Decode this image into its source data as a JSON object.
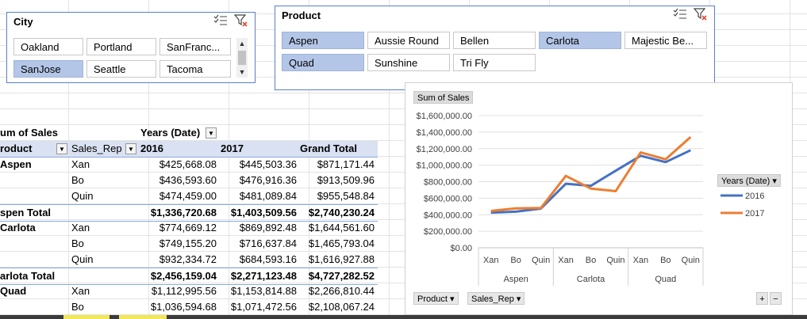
{
  "city_slicer": {
    "title": "City",
    "items": [
      {
        "label": "Oakland",
        "selected": false
      },
      {
        "label": "Portland",
        "selected": false
      },
      {
        "label": "SanFranc...",
        "selected": false
      },
      {
        "label": "SanJose",
        "selected": true
      },
      {
        "label": "Seattle",
        "selected": false
      },
      {
        "label": "Tacoma",
        "selected": false
      }
    ]
  },
  "product_slicer": {
    "title": "Product",
    "items": [
      {
        "label": "Aspen",
        "selected": true
      },
      {
        "label": "Aussie Round",
        "selected": false
      },
      {
        "label": "Bellen",
        "selected": false
      },
      {
        "label": "Carlota",
        "selected": true
      },
      {
        "label": "Majestic Be...",
        "selected": false
      },
      {
        "label": "Quad",
        "selected": true
      },
      {
        "label": "Sunshine",
        "selected": false
      },
      {
        "label": "Tri Fly",
        "selected": false
      }
    ]
  },
  "pivot": {
    "header1": {
      "measure": "um of Sales",
      "column_field": "Years (Date)"
    },
    "header2": {
      "row_field": "roduct",
      "sub_field": "Sales_Rep",
      "col_2016": "2016",
      "col_2017": "2017",
      "grand_total": "Grand Total"
    },
    "rows": [
      {
        "product": "Aspen",
        "rep": "Xan",
        "v2016": "$425,668.08",
        "v2017": "$445,503.36",
        "total": "$871,171.44",
        "type": "first"
      },
      {
        "product": "",
        "rep": "Bo",
        "v2016": "$436,593.60",
        "v2017": "$476,916.36",
        "total": "$913,509.96",
        "type": "detail"
      },
      {
        "product": "",
        "rep": "Quin",
        "v2016": "$474,459.00",
        "v2017": "$481,089.84",
        "total": "$955,548.84",
        "type": "detail"
      },
      {
        "product": "spen Total",
        "rep": "",
        "v2016": "$1,336,720.68",
        "v2017": "$1,403,509.56",
        "total": "$2,740,230.24",
        "type": "total"
      },
      {
        "product": "Carlota",
        "rep": "Xan",
        "v2016": "$774,669.12",
        "v2017": "$869,892.48",
        "total": "$1,644,561.60",
        "type": "first"
      },
      {
        "product": "",
        "rep": "Bo",
        "v2016": "$749,155.20",
        "v2017": "$716,637.84",
        "total": "$1,465,793.04",
        "type": "detail"
      },
      {
        "product": "",
        "rep": "Quin",
        "v2016": "$932,334.72",
        "v2017": "$684,593.16",
        "total": "$1,616,927.88",
        "type": "detail"
      },
      {
        "product": "arlota Total",
        "rep": "",
        "v2016": "$2,456,159.04",
        "v2017": "$2,271,123.48",
        "total": "$4,727,282.52",
        "type": "total"
      },
      {
        "product": "Quad",
        "rep": "Xan",
        "v2016": "$1,112,995.56",
        "v2017": "$1,153,814.88",
        "total": "$2,266,810.44",
        "type": "first"
      },
      {
        "product": "",
        "rep": "Bo",
        "v2016": "$1,036,594.68",
        "v2017": "$1,071,472.56",
        "total": "$2,108,067.24",
        "type": "detail"
      }
    ]
  },
  "chart": {
    "measure_pill": "Sum of Sales",
    "legend_title": "Years (Date)",
    "field_pills": [
      "Product",
      "Sales_Rep"
    ],
    "zoom_buttons": [
      "+",
      "−"
    ],
    "colors": {
      "2016": "#4472c4",
      "2017": "#ed7d31"
    }
  },
  "chart_data": {
    "type": "line",
    "categories": [
      "Xan",
      "Bo",
      "Quin",
      "Xan",
      "Bo",
      "Quin",
      "Xan",
      "Bo",
      "Quin"
    ],
    "groups": [
      {
        "label": "Aspen",
        "count": 3
      },
      {
        "label": "Carlota",
        "count": 3
      },
      {
        "label": "Quad",
        "count": 3
      }
    ],
    "series": [
      {
        "name": "2016",
        "values": [
          425668.08,
          436593.6,
          474459.0,
          774669.12,
          749155.2,
          932334.72,
          1112995.56,
          1036594.68,
          1180000
        ]
      },
      {
        "name": "2017",
        "values": [
          445503.36,
          476916.36,
          481089.84,
          869892.48,
          716637.84,
          684593.16,
          1153814.88,
          1071472.56,
          1340000
        ]
      }
    ],
    "ylim": [
      0,
      1600000
    ],
    "yticks": [
      "$0.00",
      "$200,000.00",
      "$400,000.00",
      "$600,000.00",
      "$800,000.00",
      "$1,000,000.00",
      "$1,200,000.00",
      "$1,400,000.00",
      "$1,600,000.00"
    ],
    "grid": true,
    "legend_placement": "right"
  }
}
